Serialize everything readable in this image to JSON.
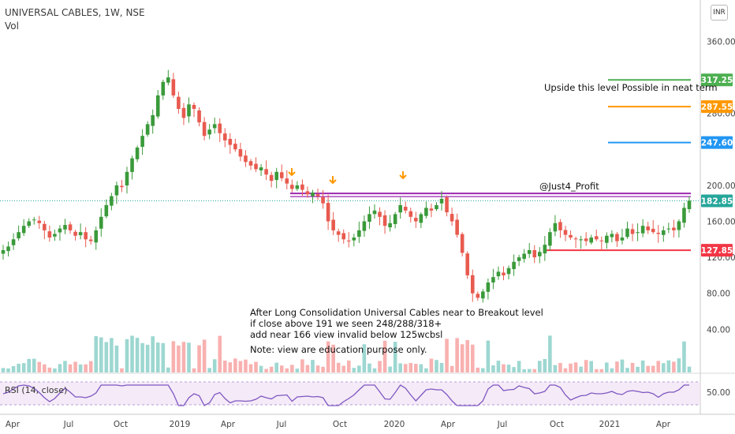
{
  "header": {
    "title": "UNIVERSAL CABLES, 1W, NSE",
    "volume_label": "Vol",
    "currency": "INR"
  },
  "colors": {
    "up": "#26a69a",
    "down": "#ef5350",
    "candle_up": "#3a9a3a",
    "candle_down": "#e85a4f",
    "green_level": "#4caf50",
    "orange_level": "#ff9800",
    "blue_level": "#2196f3",
    "red_level": "#f23645",
    "purple_line": "#9c27b0",
    "rsi_line": "#7e57c2"
  },
  "annotations": {
    "note_lines": [
      "After Long Consolidation Universal Cables near to Breakout level",
      "if close above 191 we seen 248/288/318+",
      "add near 166 view invalid below 125wcbsl",
      "Note: view are education purpose only."
    ],
    "upside_text": "Upside this level Possible in neat term",
    "handle": "@Just4_Profit"
  },
  "chart_data": {
    "type": "candlestick",
    "title": "UNIVERSAL CABLES, 1W, NSE",
    "price_axis": {
      "ticks": [
        360,
        280,
        200,
        160,
        120,
        80,
        40
      ],
      "tick_labels": [
        "360.00",
        "280.00",
        "200.00",
        "160.00",
        "120.00",
        "80.00",
        "40.00"
      ]
    },
    "time_axis": {
      "tick_labels": [
        "Apr",
        "Jul",
        "Oct",
        "2019",
        "Apr",
        "Jul",
        "Oct",
        "2020",
        "Apr",
        "Jul",
        "Oct",
        "2021",
        "Apr"
      ]
    },
    "price_labels": [
      {
        "value": 317.25,
        "text": "317.25",
        "color": "#4caf50"
      },
      {
        "value": 287.55,
        "text": "287.55",
        "color": "#ff9800"
      },
      {
        "value": 247.6,
        "text": "247.60",
        "color": "#2196f3"
      },
      {
        "value": 182.85,
        "text": "182.85",
        "color": "#26a69a"
      },
      {
        "value": 127.85,
        "text": "127.85",
        "color": "#f23645"
      }
    ],
    "horizontal_levels": [
      {
        "value": 317.25,
        "color": "#4caf50"
      },
      {
        "value": 287.55,
        "color": "#ff9800"
      },
      {
        "value": 247.6,
        "color": "#2196f3"
      },
      {
        "value": 191,
        "color": "#9c27b0"
      },
      {
        "value": 127.85,
        "color": "#f23645"
      }
    ],
    "current_price": 182.85,
    "weekly_closes_approx": [
      128,
      132,
      140,
      148,
      155,
      160,
      162,
      158,
      150,
      142,
      146,
      152,
      156,
      150,
      144,
      148,
      140,
      138,
      150,
      165,
      178,
      188,
      200,
      198,
      215,
      230,
      242,
      255,
      268,
      278,
      300,
      315,
      320,
      300,
      285,
      275,
      290,
      285,
      270,
      255,
      262,
      268,
      258,
      250,
      245,
      240,
      232,
      226,
      222,
      218,
      220,
      212,
      205,
      215,
      208,
      202,
      196,
      200,
      195,
      190,
      192,
      188,
      180,
      160,
      150,
      145,
      140,
      138,
      142,
      150,
      160,
      168,
      172,
      165,
      155,
      158,
      168,
      178,
      172,
      165,
      160,
      168,
      175,
      172,
      178,
      185,
      170,
      160,
      145,
      125,
      100,
      80,
      75,
      82,
      92,
      98,
      104,
      100,
      108,
      115,
      120,
      124,
      128,
      120,
      126,
      134,
      148,
      158,
      150,
      145,
      142,
      140,
      140,
      138,
      142,
      140,
      138,
      144,
      146,
      138,
      142,
      152,
      146,
      148,
      155,
      150,
      148,
      146,
      150,
      152,
      150,
      160,
      175,
      183
    ],
    "volume": {
      "label": "Vol"
    },
    "rsi": {
      "label": "RSI (14, close)",
      "tick_labels": [
        "50.00"
      ]
    }
  }
}
